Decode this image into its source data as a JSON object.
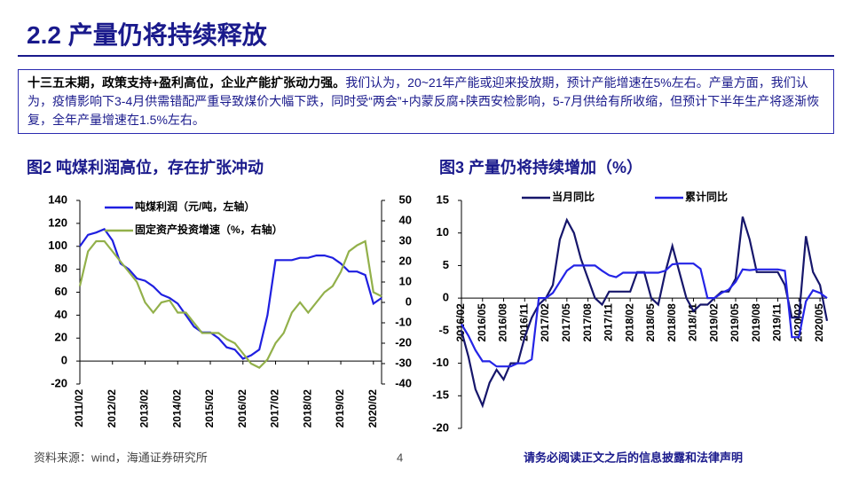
{
  "header": {
    "title": "2.2 产量仍将持续释放"
  },
  "summary": {
    "bold": "十三五末期，政策支持+盈利高位，企业产能扩张动力强。",
    "text": "我们认为，20~21年产能或迎来投放期，预计产能增速在5%左右。产量方面，我们认为，疫情影响下3-4月供需错配严重导致煤价大幅下跌，同时受“两会”+内蒙反腐+陕西安检影响，5-7月供给有所收缩，但预计下半年生产将逐渐恢复，全年产量增速在1.5%左右。"
  },
  "chart_data": [
    {
      "type": "line",
      "title": "图2 吨煤利润高位，存在扩张冲动",
      "legend": "upper left",
      "categories": [
        "2011/02",
        null,
        null,
        null,
        "2012/02",
        null,
        null,
        null,
        "2013/02",
        null,
        null,
        null,
        "2014/02",
        null,
        null,
        null,
        "2015/02",
        null,
        null,
        null,
        "2016/02",
        null,
        null,
        null,
        "2017/02",
        null,
        null,
        null,
        "2018/02",
        null,
        null,
        null,
        "2019/02",
        null,
        null,
        null,
        "2020/02",
        null
      ],
      "series": [
        {
          "name": "吨煤利润（元/吨，左轴）",
          "color": "#1f1fe0",
          "axis": "y",
          "values": [
            100,
            110,
            112,
            115,
            105,
            85,
            80,
            72,
            70,
            65,
            58,
            55,
            50,
            40,
            30,
            25,
            25,
            20,
            12,
            10,
            2,
            5,
            10,
            40,
            88,
            88,
            88,
            90,
            90,
            92,
            92,
            90,
            85,
            78,
            78,
            75,
            50,
            55
          ]
        },
        {
          "name": "固定资产投资增速（%，右轴）",
          "color": "#92b04a",
          "axis": "y2",
          "values": [
            8,
            25,
            30,
            30,
            25,
            20,
            15,
            10,
            0,
            -5,
            0,
            1,
            -5,
            -5,
            -10,
            -15,
            -15,
            -15,
            -18,
            -20,
            -25,
            -30,
            -32,
            -28,
            -20,
            -15,
            -5,
            0,
            -5,
            0,
            5,
            8,
            15,
            25,
            28,
            30,
            5,
            3
          ]
        }
      ],
      "ylim": [
        -20,
        140
      ],
      "yticks": [
        -20,
        0,
        20,
        40,
        60,
        80,
        100,
        120,
        140
      ],
      "y2lim": [
        -40,
        50
      ],
      "y2ticks": [
        -40,
        -30,
        -20,
        -10,
        0,
        10,
        20,
        30,
        40,
        50
      ]
    },
    {
      "type": "line",
      "title": "图3 产量仍将持续增加（%）",
      "legend": "upper center",
      "categories": [
        "2016/02",
        null,
        null,
        "2016/05",
        null,
        null,
        "2016/08",
        null,
        null,
        "2016/11",
        null,
        null,
        "2017/02",
        null,
        null,
        "2017/05",
        null,
        null,
        "2017/08",
        null,
        null,
        "2017/11",
        null,
        null,
        "2018/02",
        null,
        null,
        "2018/05",
        null,
        null,
        "2018/08",
        null,
        null,
        "2018/11",
        null,
        null,
        "2019/02",
        null,
        null,
        "2019/05",
        null,
        null,
        "2019/08",
        null,
        null,
        "2019/11",
        null,
        null,
        "2020/02",
        null,
        null,
        "2020/05",
        null
      ],
      "series": [
        {
          "name": "当月同比",
          "color": "#16166b",
          "values": [
            -5,
            -9,
            -14,
            -16.5,
            -13,
            -11,
            -12.5,
            -10,
            -10,
            -6,
            -3,
            -1,
            0,
            2,
            9,
            12,
            10,
            6,
            3,
            0,
            -1,
            1,
            1,
            1,
            1,
            4,
            4,
            0,
            -1,
            4,
            8,
            4,
            0,
            -2,
            -1,
            -1,
            0,
            1,
            1,
            3,
            12.5,
            9,
            4,
            4,
            4,
            4,
            2,
            -3,
            -3,
            9.5,
            4,
            2,
            -3.5
          ]
        },
        {
          "name": "累计同比",
          "color": "#2424e6",
          "values": [
            -4,
            -5.8,
            -8,
            -9.7,
            -9.7,
            -10.5,
            -10.5,
            -10.5,
            -10,
            -10,
            -9.4,
            0,
            0,
            0.8,
            2.5,
            4.2,
            5,
            5,
            5,
            5,
            4.2,
            3.5,
            3.2,
            3.9,
            3.9,
            3.9,
            3.9,
            3.9,
            3.9,
            4.2,
            5.2,
            5.3,
            5.3,
            5.3,
            4.5,
            0,
            0,
            0.8,
            1.3,
            2.5,
            4.4,
            4.3,
            4.4,
            4.4,
            4.4,
            4.4,
            4.2,
            -6,
            -6,
            -0.5,
            1.2,
            0.8,
            0
          ]
        }
      ],
      "ylim": [
        -20,
        15
      ],
      "yticks": [
        -20,
        -15,
        -10,
        -5,
        0,
        5,
        10,
        15
      ]
    }
  ],
  "footer": {
    "source": "资料来源：wind，海通证券研究所",
    "page": "4",
    "disclaimer": "请务必阅读正文之后的信息披露和法律声明"
  }
}
